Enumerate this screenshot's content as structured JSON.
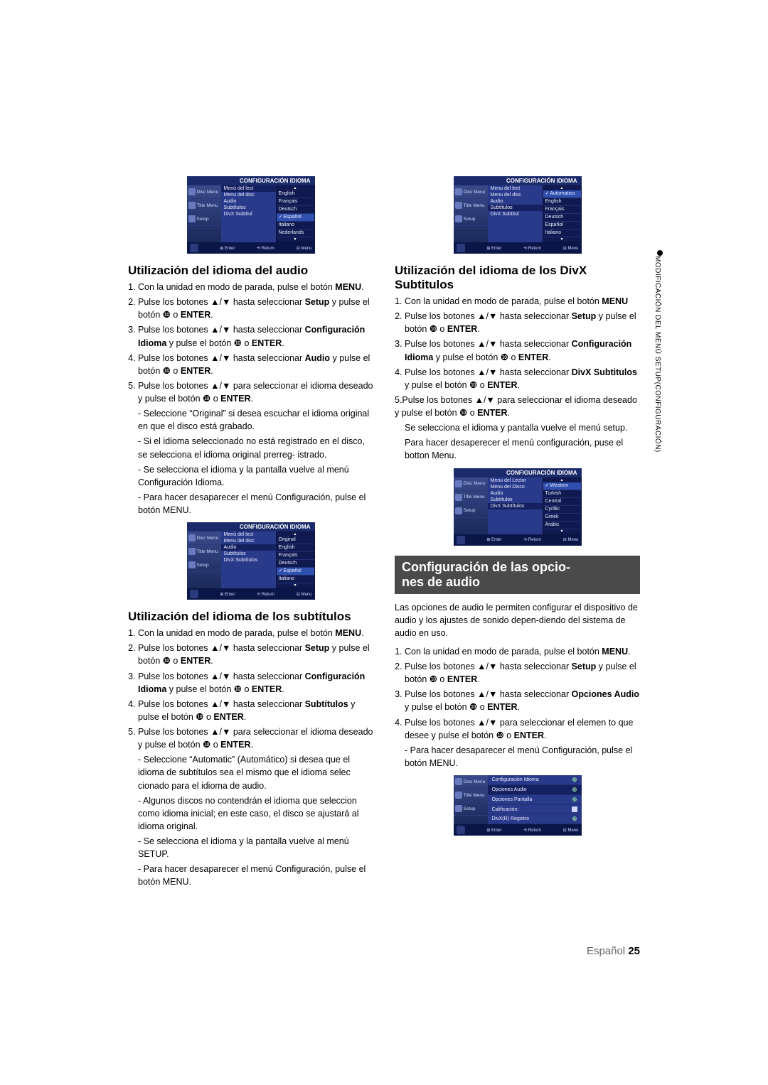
{
  "side_label": "MODIFICACIÓN DEL MENÚ SETUP(CONFIGURACIÓN)",
  "osd_header": "CONFIGURACIÓN IDIOMA",
  "osd_tabs": [
    "Disc Menu",
    "Title Menu",
    "Setup"
  ],
  "osd_footer": [
    "⊞ Enter",
    "⟲ Return",
    "⊟ Menu"
  ],
  "osd1": {
    "mid": [
      "Menú del lect",
      "Menu del disc",
      "Audio",
      "Subtítulos",
      "DivX Subtitul"
    ],
    "sel_mid": 0,
    "right": [
      "English",
      "Français",
      "Deutsch",
      "Español",
      "Italiano",
      "Nederlands"
    ],
    "sel_right": 3
  },
  "osd2": {
    "mid": [
      "Menú del lect",
      "Menu del disc",
      "Audio",
      "Subtítulos",
      "DivX Subtítulos"
    ],
    "sel_mid": 2,
    "right": [
      "Original",
      "English",
      "Français",
      "Deutsch",
      "Español",
      "Italiano"
    ],
    "sel_right": 4
  },
  "osd3": {
    "mid": [
      "Menu del lect",
      "Menu del disc",
      "Audio",
      "Subtítulos",
      "DivX Subtitul"
    ],
    "sel_mid": 3,
    "right": [
      "Automatico",
      "English",
      "Français",
      "Deutsch",
      "Español",
      "Italiano"
    ],
    "sel_right": 0
  },
  "osd4": {
    "mid": [
      "Menu del Lector",
      "Menu del Disco",
      "Audio",
      "Subtítulos",
      "DivX Subtítulos"
    ],
    "sel_mid": 4,
    "right": [
      "Western",
      "Turkish",
      "Central",
      "Cyrillic",
      "Greek",
      "Arabic"
    ],
    "sel_right": 0
  },
  "osd5_header": "",
  "osd5": {
    "rows": [
      {
        "label": "Configuración Idioma",
        "arrow": true
      },
      {
        "label": "Opciones Audio",
        "arrow": true,
        "sel": true
      },
      {
        "label": "Opciones Pantalla",
        "arrow": true
      },
      {
        "label": "Calificación:",
        "lock": true
      },
      {
        "label": "DivX(R) Registro",
        "arrow": true
      }
    ]
  },
  "left": {
    "h_audio": "Utilización del idioma del audio",
    "audio_steps": [
      "Con la unidad en modo de parada, pulse el botón <b>MENU</b>.",
      "Pulse los botones ▲/▼ hasta seleccionar <b>Setup</b> y pulse el botón ❿ o <b>ENTER</b>.",
      "Pulse los botones ▲/▼ hasta seleccionar <b>Configuración Idioma</b> y pulse el botón ❿ o <b>ENTER</b>.",
      "Pulse los botones ▲/▼ hasta seleccionar <b>Audio</b> y pulse el botón ❿ o <b>ENTER</b>.",
      "Pulse los botones ▲/▼ para seleccionar el idioma deseado y pulse el botón ❿ o <b>ENTER</b>."
    ],
    "audio_subs": [
      "- Seleccione “Original” si desea escuchar el idioma original en que el disco está grabado.",
      "- Si el idioma seleccionado no está registrado en el disco, se selecciona el idioma original prerreg- istrado.",
      "- Se selecciona el idioma y la pantalla vuelve al menú Configuración Idioma.",
      "- Para hacer desaparecer el menú Configuración, pulse el botón MENU."
    ],
    "h_sub": "Utilización del idioma de los subtítulos",
    "sub_steps": [
      "Con la unidad en modo de parada, pulse el botón <b>MENU</b>.",
      "Pulse los botones ▲/▼ hasta seleccionar <b>Setup</b> y pulse el botón ❿ o <b>ENTER</b>.",
      "Pulse los botones ▲/▼ hasta seleccionar <b>Configuración Idioma</b> y pulse el botón ❿ o <b>ENTER</b>.",
      "Pulse los botones ▲/▼ hasta seleccionar <b>Subtítulos</b> y pulse el botón  ❿ o <b>ENTER</b>.",
      "Pulse los botones ▲/▼ para seleccionar el idioma deseado y pulse el botón ❿ o <b>ENTER</b>."
    ],
    "sub_subs": [
      "- Seleccione “Automatic” (Automático) si desea que el idioma de subtítulos sea el mismo que el idioma selec cionado para el idioma de audio.",
      "- Algunos discos no contendrán el idioma que seleccion como idioma inicial; en este caso, el disco se ajustará al idioma original.",
      "- Se selecciona el idioma y la pantalla vuelve al menú SETUP.",
      "- Para hacer desaparecer el menú Configuración, pulse el botón MENU."
    ]
  },
  "right": {
    "h_divx": "Utilización del idioma de los DivX Subtitulos",
    "divx_steps": [
      "Con la unidad en modo de parada, pulse el botón <b>MENU</b>",
      "Pulse los botones ▲/▼ hasta seleccionar <b>Setup</b> y pulse el botón ❿ o <b>ENTER</b>.",
      "Pulse los botones ▲/▼ hasta seleccionar <b>Configuración Idioma</b> y pulse el botón ❿ o <b>ENTER</b>.",
      "Pulse los botones ▲/▼ hasta seleccionar <b>DivX Subtitulos</b> y pulse el botón ❿ o <b>ENTER</b>."
    ],
    "divx_step5": "5.Pulse los botones ▲/▼ para seleccionar el idioma deseado y pulse el botón ❿ o <b>ENTER</b>.",
    "divx_subs": [
      "Se selecciona el idioma y pantalla vuelve el menú setup.",
      "Para hacer desaperecer el menú configuración, puse el botton Menu."
    ],
    "h_bar": "Configuración de las opcio-<br>nes de audio",
    "intro": "Las opciones de audio le permiten configurar el dispositivo de audio y los ajustes de sonido depen-diendo del sistema de audio en uso.",
    "opts_steps": [
      "Con la unidad en modo de parada, pulse el botón <b>MENU</b>.",
      "Pulse los botones ▲/▼ hasta seleccionar <b>Setup</b> y pulse el botón ❿ o <b>ENTER</b>.",
      "Pulse los botones ▲/▼ hasta seleccionar <b>Opciones Audio</b> y pulse el botón ❿ o <b>ENTER</b>.",
      "Pulse los botones ▲/▼ para seleccionar el elemen to que desee y pulse el botón ❿ o <b>ENTER</b>."
    ],
    "opts_sub": "- Para hacer desaparecer el menú Configuración, pulse el botón MENU."
  },
  "footer_lang": "Español ",
  "footer_page": "25"
}
